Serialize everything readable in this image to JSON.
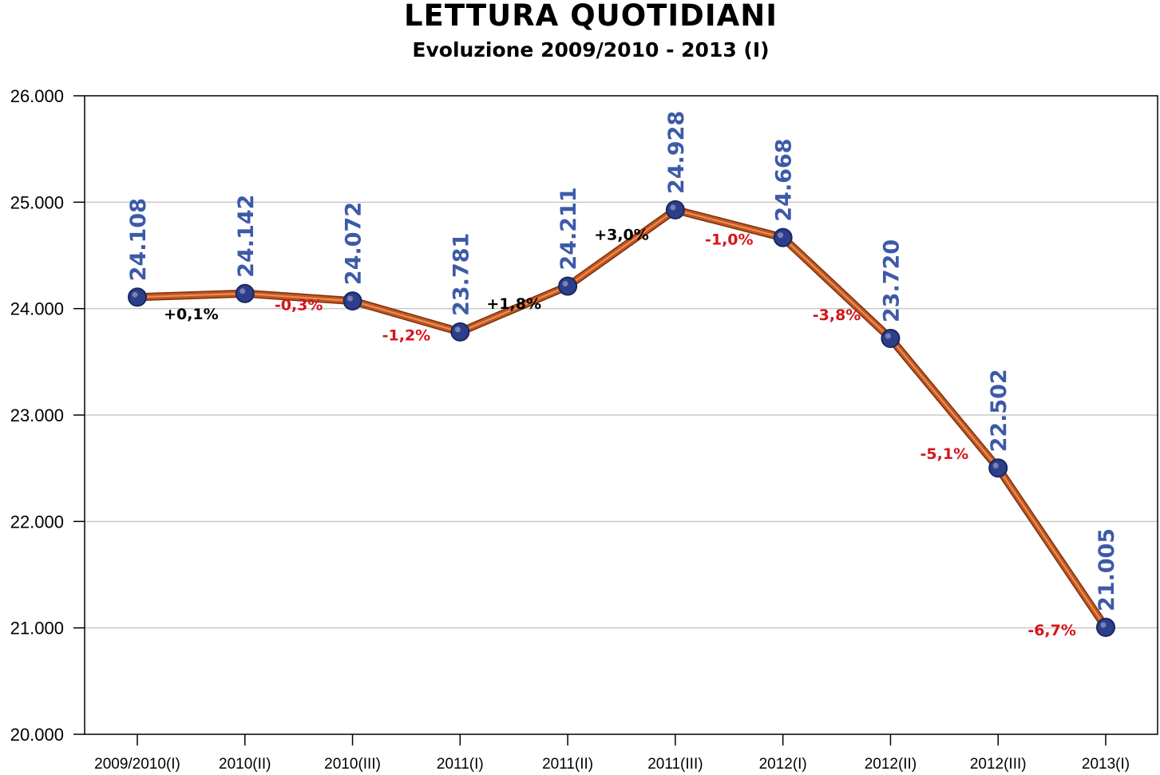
{
  "chart_data": {
    "type": "line",
    "title": "LETTURA QUOTIDIANI",
    "subtitle": "Evoluzione 2009/2010 - 2013 (I)",
    "xlabel": "",
    "ylabel": "",
    "categories": [
      "2009/2010(I)",
      "2010(II)",
      "2010(III)",
      "2011(I)",
      "2011(II)",
      "2011(III)",
      "2012(I)",
      "2012(II)",
      "2012(III)",
      "2013(I)"
    ],
    "series": [
      {
        "values": [
          24108,
          24142,
          24072,
          23781,
          24211,
          24928,
          24668,
          23720,
          22502,
          21005
        ],
        "value_labels": [
          "24.108",
          "24.142",
          "24.072",
          "23.781",
          "24.211",
          "24.928",
          "24.668",
          "23.720",
          "22.502",
          "21.005"
        ]
      }
    ],
    "changes": [
      {
        "label": "+0,1%",
        "sign": "positive"
      },
      {
        "label": "-0,3%",
        "sign": "negative"
      },
      {
        "label": "-1,2%",
        "sign": "negative"
      },
      {
        "label": "+1,8%",
        "sign": "positive"
      },
      {
        "label": "+3,0%",
        "sign": "positive"
      },
      {
        "label": "-1,0%",
        "sign": "negative"
      },
      {
        "label": "-3,8%",
        "sign": "negative"
      },
      {
        "label": "-5,1%",
        "sign": "negative"
      },
      {
        "label": "-6,7%",
        "sign": "negative"
      }
    ],
    "ylim": [
      20000,
      26000
    ],
    "yticks": [
      20000,
      21000,
      22000,
      23000,
      24000,
      25000,
      26000
    ],
    "ytick_labels": [
      "20.000",
      "21.000",
      "22.000",
      "23.000",
      "24.000",
      "25.000",
      "26.000"
    ],
    "grid": true,
    "legend": "none",
    "colors": {
      "line": "#c4561d",
      "line_highlight": "#f0a070",
      "marker": "#2d3f8a",
      "value_label": "#3d5aa8",
      "change_positive": "#000000",
      "change_negative": "#d6141c",
      "grid": "#c8c8c8"
    }
  }
}
